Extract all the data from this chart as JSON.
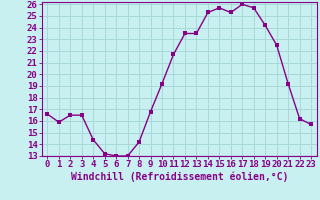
{
  "x": [
    0,
    1,
    2,
    3,
    4,
    5,
    6,
    7,
    8,
    9,
    10,
    11,
    12,
    13,
    14,
    15,
    16,
    17,
    18,
    19,
    20,
    21,
    22,
    23
  ],
  "y": [
    16.6,
    15.9,
    16.5,
    16.5,
    14.4,
    13.2,
    13.0,
    13.0,
    14.2,
    16.8,
    19.2,
    21.7,
    23.5,
    23.5,
    25.3,
    25.7,
    25.3,
    26.0,
    25.7,
    24.2,
    22.5,
    19.2,
    16.2,
    15.7
  ],
  "line_color": "#880088",
  "marker_color": "#880088",
  "bg_color": "#C8F0F0",
  "grid_color": "#A8D8D8",
  "axis_color": "#880088",
  "xlabel": "Windchill (Refroidissement éolien,°C)",
  "ylim": [
    13,
    26
  ],
  "xlim": [
    -0.5,
    23.5
  ],
  "yticks": [
    13,
    14,
    15,
    16,
    17,
    18,
    19,
    20,
    21,
    22,
    23,
    24,
    25,
    26
  ],
  "xticks": [
    0,
    1,
    2,
    3,
    4,
    5,
    6,
    7,
    8,
    9,
    10,
    11,
    12,
    13,
    14,
    15,
    16,
    17,
    18,
    19,
    20,
    21,
    22,
    23
  ],
  "xlabel_fontsize": 7.0,
  "tick_fontsize": 6.5,
  "marker_size": 2.5,
  "line_width": 1.0
}
